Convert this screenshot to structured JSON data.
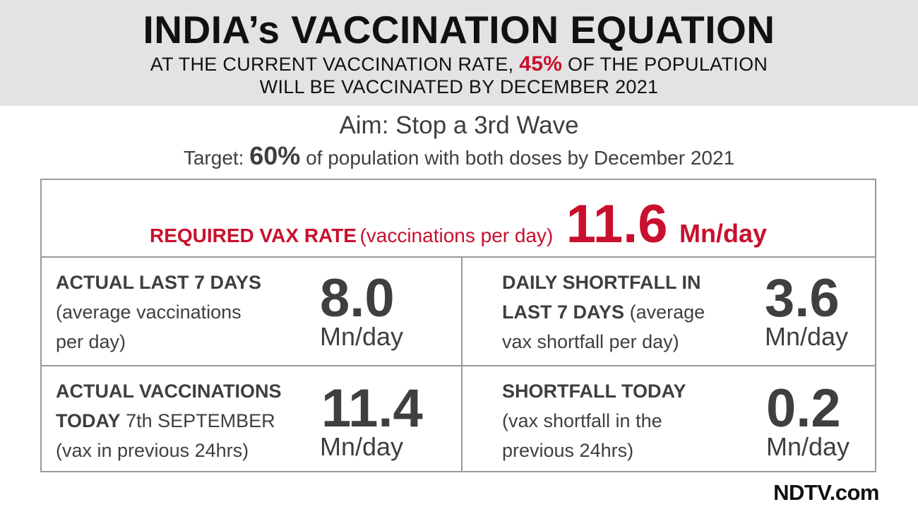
{
  "header": {
    "title": "INDIA’s VACCINATION EQUATION",
    "subtitle_pre": "AT THE CURRENT VACCINATION RATE,",
    "subtitle_pct": "45%",
    "subtitle_post": "OF THE POPULATION",
    "subtitle_line2": "WILL BE VACCINATED BY DECEMBER 2021"
  },
  "aim": "Aim: Stop a 3rd Wave",
  "target": {
    "pre": "Target:",
    "pct": "60%",
    "post": "of population with both doses by December 2021"
  },
  "required": {
    "label": "REQUIRED VAX RATE",
    "note": "(vaccinations per day)",
    "value": "11.6",
    "unit": "Mn/day"
  },
  "cells": {
    "actual_7": {
      "title": "ACTUAL LAST 7 DAYS",
      "note_line1": "(average vaccinations",
      "note_line2": "per day)",
      "value": "8.0",
      "unit": "Mn/day"
    },
    "shortfall_7": {
      "title_line1": "DAILY SHORTFALL IN",
      "title_line2": "LAST 7 DAYS",
      "note_line2": "(average",
      "note_line3": "vax shortfall per day)",
      "value": "3.6",
      "unit": "Mn/day"
    },
    "actual_today": {
      "title_line1": "ACTUAL VACCINATIONS",
      "title_line2": "TODAY",
      "date": "7th SEPTEMBER",
      "note": "(vax in previous 24hrs)",
      "value": "11.4",
      "unit": "Mn/day"
    },
    "shortfall_today": {
      "title": "SHORTFALL TODAY",
      "note_line1": "(vax shortfall in the",
      "note_line2": "previous 24hrs)",
      "value": "0.2",
      "unit": "Mn/day"
    }
  },
  "logo": "NDTV.com",
  "colors": {
    "accent": "#c8102e",
    "header_bg": "#e3e3e3",
    "text": "#3f3f3f",
    "border": "#9a9a9a"
  }
}
